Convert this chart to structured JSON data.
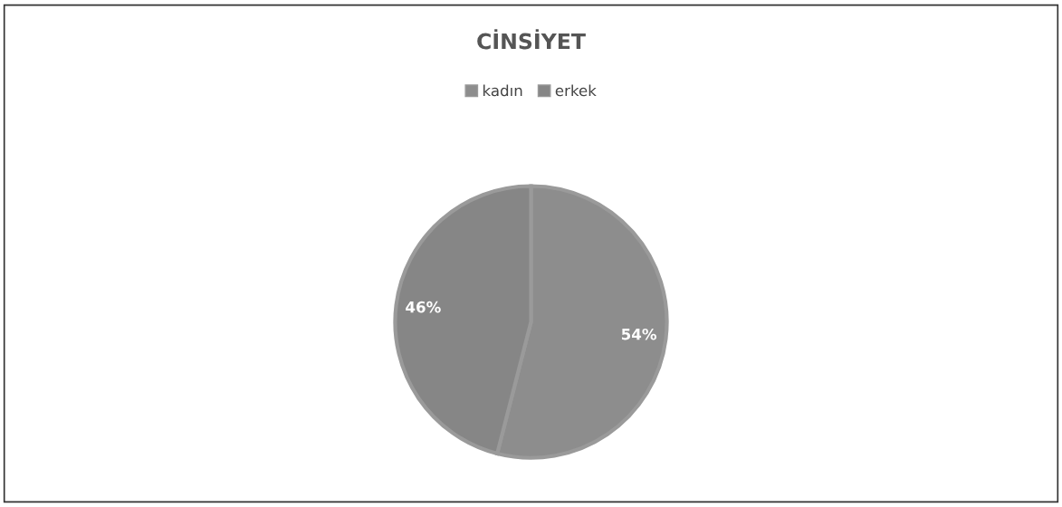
{
  "chart_data": {
    "type": "pie",
    "title": "CİNSİYET",
    "categories": [
      "kadın",
      "erkek"
    ],
    "values": [
      54,
      46
    ],
    "colors": [
      "#8d8d8d",
      "#868686"
    ],
    "value_labels": [
      "54%",
      "46%"
    ],
    "legend": "top"
  }
}
